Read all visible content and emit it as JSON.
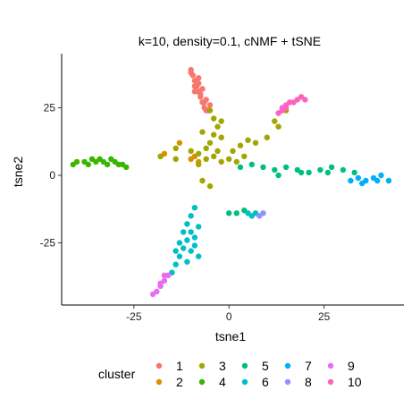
{
  "chart_data": {
    "type": "scatter",
    "title": "k=10, density=0.1, cNMF + tSNE",
    "xlabel": "tsne1",
    "ylabel": "tsne2",
    "xlim": [
      -44,
      46
    ],
    "ylim": [
      -48,
      45
    ],
    "x_ticks": [
      -25,
      0,
      25
    ],
    "y_ticks": [
      -25,
      0,
      25
    ],
    "grid": false,
    "legend": {
      "title": "cluster",
      "placement": "bottom",
      "entries": [
        {
          "label": "1",
          "color": "#F8766D"
        },
        {
          "label": "2",
          "color": "#D89000"
        },
        {
          "label": "3",
          "color": "#A3A500"
        },
        {
          "label": "4",
          "color": "#39B600"
        },
        {
          "label": "5",
          "color": "#00BF7D"
        },
        {
          "label": "6",
          "color": "#00BFC4"
        },
        {
          "label": "7",
          "color": "#00B0F6"
        },
        {
          "label": "8",
          "color": "#9590FF"
        },
        {
          "label": "9",
          "color": "#E76BF3"
        },
        {
          "label": "10",
          "color": "#FF62BC"
        }
      ]
    },
    "series": [
      {
        "name": "1",
        "color": "#F8766D",
        "points": [
          [
            -10,
            39
          ],
          [
            -9.5,
            37
          ],
          [
            -9,
            35
          ],
          [
            -8.5,
            33
          ],
          [
            -8,
            31
          ],
          [
            -7.5,
            29
          ],
          [
            -7,
            27
          ],
          [
            -6.5,
            25
          ],
          [
            -6,
            24
          ],
          [
            -8,
            36
          ],
          [
            -7,
            32
          ],
          [
            -9,
            31
          ],
          [
            -6,
            28
          ],
          [
            -5,
            26
          ],
          [
            -8,
            34
          ],
          [
            -10,
            38
          ],
          [
            -7.5,
            30
          ],
          [
            -6.5,
            27
          ],
          [
            -5.5,
            24
          ],
          [
            -9,
            33
          ]
        ]
      },
      {
        "name": "2",
        "color": "#D89000",
        "points": [
          [
            -18,
            7
          ],
          [
            -17,
            8
          ],
          [
            -10,
            6
          ],
          [
            -9,
            7
          ],
          [
            -8,
            5
          ],
          [
            -13,
            12
          ]
        ]
      },
      {
        "name": "3",
        "color": "#A3A500",
        "points": [
          [
            -14,
            10
          ],
          [
            -10,
            9
          ],
          [
            -8,
            8
          ],
          [
            -6,
            6
          ],
          [
            -4,
            7
          ],
          [
            -2,
            5
          ],
          [
            0,
            6
          ],
          [
            2,
            5
          ],
          [
            4,
            7
          ],
          [
            -5,
            12
          ],
          [
            -4,
            15
          ],
          [
            -3,
            18
          ],
          [
            -6,
            10
          ],
          [
            -3,
            9
          ],
          [
            1,
            9
          ],
          [
            3,
            11
          ],
          [
            5,
            13
          ],
          [
            7,
            12
          ],
          [
            10,
            14
          ],
          [
            12,
            20
          ],
          [
            15,
            24
          ],
          [
            13,
            18
          ],
          [
            -7,
            16
          ],
          [
            -2,
            14
          ],
          [
            -4,
            21
          ],
          [
            -5,
            24
          ],
          [
            -2,
            20
          ],
          [
            -8,
            4
          ],
          [
            -7,
            -2
          ],
          [
            -5,
            -4
          ],
          [
            -18,
            7
          ],
          [
            -14,
            6
          ]
        ]
      },
      {
        "name": "4",
        "color": "#39B600",
        "points": [
          [
            -41,
            4
          ],
          [
            -40,
            5
          ],
          [
            -38,
            5
          ],
          [
            -36,
            6
          ],
          [
            -34,
            6
          ],
          [
            -33,
            5
          ],
          [
            -32,
            4
          ],
          [
            -30,
            5
          ],
          [
            -29,
            4
          ],
          [
            -27,
            3
          ],
          [
            -37,
            4
          ],
          [
            -35,
            5
          ],
          [
            -31,
            6
          ],
          [
            -28,
            4
          ]
        ]
      },
      {
        "name": "5",
        "color": "#00BF7D",
        "points": [
          [
            3,
            3
          ],
          [
            6,
            4
          ],
          [
            9,
            3
          ],
          [
            12,
            2
          ],
          [
            15,
            3
          ],
          [
            18,
            2
          ],
          [
            21,
            1
          ],
          [
            24,
            2
          ],
          [
            27,
            3
          ],
          [
            30,
            2
          ],
          [
            33,
            1
          ],
          [
            13,
            0
          ],
          [
            19,
            1
          ],
          [
            26,
            1
          ],
          [
            0,
            -14
          ],
          [
            2,
            -14
          ],
          [
            4,
            -13
          ]
        ]
      },
      {
        "name": "6",
        "color": "#00BFC4",
        "points": [
          [
            -9,
            -12
          ],
          [
            -10,
            -15
          ],
          [
            -11,
            -18
          ],
          [
            -10,
            -21
          ],
          [
            -11,
            -24
          ],
          [
            -12,
            -27
          ],
          [
            -13,
            -30
          ],
          [
            -14,
            -33
          ],
          [
            -15,
            -36
          ],
          [
            -8,
            -19
          ],
          [
            -9,
            -23
          ],
          [
            -12,
            -21
          ],
          [
            -13,
            -25
          ],
          [
            -10,
            -28
          ],
          [
            -11,
            -32
          ],
          [
            -9,
            -26
          ],
          [
            -8,
            -30
          ],
          [
            -14,
            -28
          ],
          [
            5,
            -14
          ],
          [
            6,
            -15
          ],
          [
            7,
            -14
          ]
        ]
      },
      {
        "name": "7",
        "color": "#00B0F6",
        "points": [
          [
            32,
            -2
          ],
          [
            34,
            -1
          ],
          [
            36,
            -2
          ],
          [
            38,
            -1
          ],
          [
            40,
            0
          ],
          [
            42,
            -2
          ],
          [
            35,
            -3
          ],
          [
            39,
            -2
          ]
        ]
      },
      {
        "name": "8",
        "color": "#9590FF",
        "points": [
          [
            8,
            -15
          ],
          [
            9,
            -14
          ]
        ]
      },
      {
        "name": "9",
        "color": "#E76BF3",
        "points": [
          [
            -16,
            -37
          ],
          [
            -17,
            -39
          ],
          [
            -18,
            -41
          ],
          [
            -19,
            -43
          ],
          [
            -20,
            -44
          ],
          [
            -18,
            -40
          ],
          [
            -17,
            -37
          ],
          [
            14,
            25
          ],
          [
            16,
            27
          ]
        ]
      },
      {
        "name": "10",
        "color": "#FF62BC",
        "points": [
          [
            14,
            24
          ],
          [
            15,
            26
          ],
          [
            16,
            27
          ],
          [
            17,
            27
          ],
          [
            18,
            28
          ],
          [
            19,
            29
          ],
          [
            20,
            28
          ],
          [
            13,
            23
          ],
          [
            15,
            25
          ]
        ]
      }
    ]
  }
}
